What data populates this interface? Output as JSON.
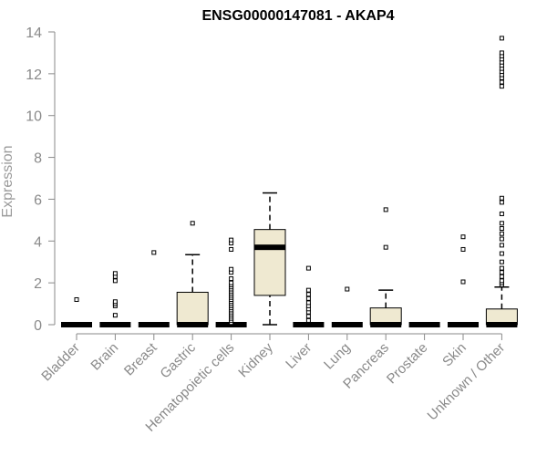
{
  "colors": {
    "box_fill": "#efe9d1",
    "box_stroke": "#000000",
    "axis": "#8a8a8a",
    "text_muted": "#8a8a8a"
  },
  "chart_data": {
    "type": "box",
    "title": "ENSG00000147081 - AKAP4",
    "xlabel": "",
    "ylabel": "Expression",
    "ylim": [
      0,
      14
    ],
    "yticks": [
      0,
      2,
      4,
      6,
      8,
      10,
      12,
      14
    ],
    "grid": false,
    "legend": "none",
    "categories": [
      "Bladder",
      "Brain",
      "Breast",
      "Gastric",
      "Hematopoietic cells",
      "Kidney",
      "Liver",
      "Lung",
      "Pancreas",
      "Prostate",
      "Skin",
      "Unknown / Other"
    ],
    "boxes": [
      {
        "category": "Bladder",
        "min": 0,
        "q1": 0,
        "median": 0,
        "q3": 0,
        "max": 0,
        "outliers": [
          1.2
        ]
      },
      {
        "category": "Brain",
        "min": 0,
        "q1": 0,
        "median": 0,
        "q3": 0,
        "max": 0,
        "outliers": [
          0.45,
          0.9,
          1.0,
          1.1,
          2.1,
          2.3,
          2.45
        ]
      },
      {
        "category": "Breast",
        "min": 0,
        "q1": 0,
        "median": 0,
        "q3": 0,
        "max": 0,
        "outliers": [
          3.45
        ]
      },
      {
        "category": "Gastric",
        "min": 0,
        "q1": 0,
        "median": 0,
        "q3": 1.55,
        "max": 3.35,
        "outliers": [
          4.85
        ]
      },
      {
        "category": "Hematopoietic cells",
        "min": 0,
        "q1": 0,
        "median": 0,
        "q3": 0,
        "max": 0,
        "outliers": [
          0.1,
          0.2,
          0.3,
          0.4,
          0.5,
          0.6,
          0.7,
          0.8,
          0.9,
          1.0,
          1.1,
          1.2,
          1.3,
          1.4,
          1.5,
          1.6,
          1.7,
          1.8,
          1.9,
          2.0,
          2.2,
          2.5,
          2.65,
          3.6,
          3.9,
          4.05
        ]
      },
      {
        "category": "Kidney",
        "min": 0,
        "q1": 1.4,
        "median": 3.7,
        "q3": 4.55,
        "max": 6.3,
        "outliers": []
      },
      {
        "category": "Liver",
        "min": 0,
        "q1": 0,
        "median": 0,
        "q3": 0,
        "max": 0,
        "outliers": [
          0.2,
          0.4,
          0.6,
          0.75,
          0.9,
          1.05,
          1.25,
          1.45,
          1.65,
          2.7
        ]
      },
      {
        "category": "Lung",
        "min": 0,
        "q1": 0,
        "median": 0,
        "q3": 0,
        "max": 0,
        "outliers": [
          1.7
        ]
      },
      {
        "category": "Pancreas",
        "min": 0,
        "q1": 0,
        "median": 0,
        "q3": 0.8,
        "max": 1.65,
        "outliers": [
          3.7,
          5.5
        ]
      },
      {
        "category": "Prostate",
        "min": 0,
        "q1": 0,
        "median": 0,
        "q3": 0,
        "max": 0,
        "outliers": []
      },
      {
        "category": "Skin",
        "min": 0,
        "q1": 0,
        "median": 0,
        "q3": 0,
        "max": 0,
        "outliers": [
          2.05,
          3.6,
          4.2
        ]
      },
      {
        "category": "Unknown / Other",
        "min": 0,
        "q1": 0,
        "median": 0,
        "q3": 0.75,
        "max": 1.8,
        "outliers": [
          1.9,
          2.0,
          2.1,
          2.3,
          2.5,
          2.7,
          3.0,
          3.4,
          3.8,
          4.1,
          4.35,
          4.6,
          4.85,
          5.3,
          5.85,
          6.05,
          11.4,
          11.6,
          11.8,
          11.95,
          12.1,
          12.25,
          12.4,
          12.55,
          12.7,
          12.85,
          13.0,
          13.7
        ]
      }
    ]
  }
}
